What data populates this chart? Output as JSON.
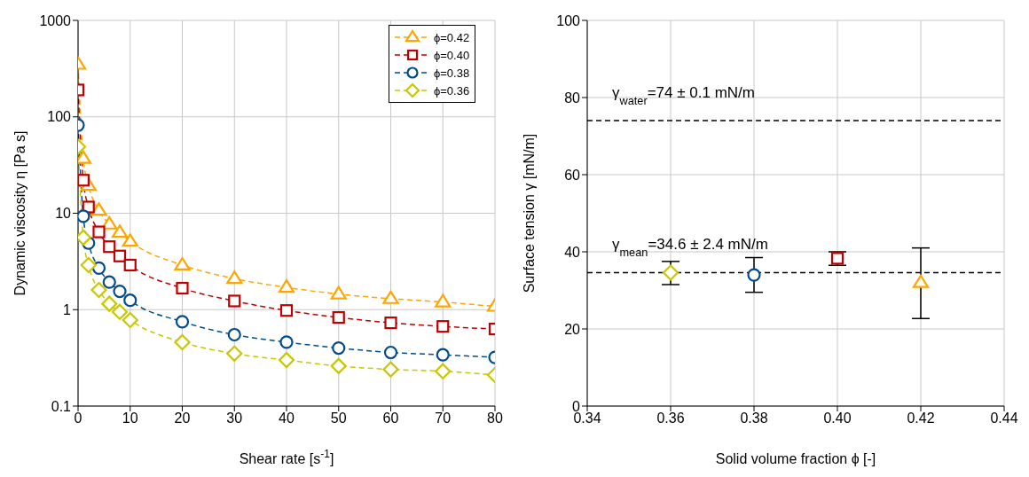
{
  "chart_data": [
    {
      "type": "line",
      "xlabel": "Shear rate [s$^{-1}$]",
      "ylabel": "Dynamic viscosity η [Pa s]",
      "log": "y",
      "xlim": [
        0,
        80
      ],
      "xticks": [
        0,
        10,
        20,
        30,
        40,
        50,
        60,
        70,
        80
      ],
      "ylim": [
        0.1,
        1000
      ],
      "yticks": [
        0.1,
        1,
        10,
        100,
        1000
      ],
      "grid": true,
      "legend": "top right",
      "line_style": "dashed",
      "x": [
        0,
        1,
        2,
        4,
        6,
        8,
        10,
        20,
        30,
        40,
        50,
        60,
        70,
        80
      ],
      "series": [
        {
          "name": "ϕ=0.42",
          "color": "#ffa500",
          "marker": "triangle",
          "values": [
            350,
            37,
            19.4,
            10.7,
            7.7,
            6.3,
            5.1,
            2.9,
            2.1,
            1.7,
            1.45,
            1.3,
            1.2,
            1.08
          ]
        },
        {
          "name": "ϕ=0.40",
          "color": "#c00000",
          "marker": "square",
          "values": [
            190,
            22,
            11.6,
            6.4,
            4.5,
            3.6,
            2.9,
            1.67,
            1.23,
            0.98,
            0.83,
            0.73,
            0.67,
            0.63
          ]
        },
        {
          "name": "ϕ=0.38",
          "color": "#004c8c",
          "marker": "circle",
          "values": [
            82,
            9.3,
            4.9,
            2.7,
            1.93,
            1.55,
            1.25,
            0.75,
            0.55,
            0.46,
            0.4,
            0.36,
            0.34,
            0.32
          ]
        },
        {
          "name": "ϕ=0.36",
          "color": "#c8c800",
          "marker": "diamond",
          "values": [
            49,
            5.6,
            2.9,
            1.6,
            1.15,
            0.95,
            0.78,
            0.46,
            0.35,
            0.3,
            0.26,
            0.24,
            0.23,
            0.21
          ]
        }
      ]
    },
    {
      "type": "scatter",
      "xlabel": "Solid volume fraction ϕ [-]",
      "ylabel": "Surface tension γ [mN/m]",
      "xlim": [
        0.34,
        0.44
      ],
      "xticks": [
        0.34,
        0.36,
        0.38,
        {
          "value": 0.4,
          "label": "0.40"
        },
        0.42,
        0.44
      ],
      "ylim": [
        0,
        100
      ],
      "yticks": [
        0,
        20,
        40,
        60,
        80,
        100
      ],
      "grid": true,
      "series": [
        {
          "color": "#c8c800",
          "marker": "diamond",
          "x": [
            0.36
          ],
          "values": [
            34.6
          ],
          "errors": [
            [
              31.5,
              37.5
            ]
          ]
        },
        {
          "color": "#004c8c",
          "marker": "circle",
          "x": [
            0.38
          ],
          "values": [
            34
          ],
          "errors": [
            [
              29.5,
              38.5
            ]
          ]
        },
        {
          "color": "#c00000",
          "marker": "square",
          "x": [
            0.4
          ],
          "values": [
            38.3
          ],
          "errors": [
            [
              36.5,
              40
            ]
          ]
        },
        {
          "color": "#ffa500",
          "marker": "triangle",
          "x": [
            0.42
          ],
          "values": [
            32
          ],
          "errors": [
            [
              22.7,
              41
            ]
          ]
        }
      ],
      "ref_lines": [
        {
          "axis": "y",
          "value": 74,
          "label": "γ$_{water}$=74 ± 0.1 mN/m",
          "color": "#000000",
          "line_style": "dashed"
        },
        {
          "axis": "y",
          "value": 34.6,
          "label": "γ$_{mean}$=34.6 ± 2.4 mN/m",
          "color": "#000000",
          "line_style": "dashed"
        }
      ]
    }
  ]
}
